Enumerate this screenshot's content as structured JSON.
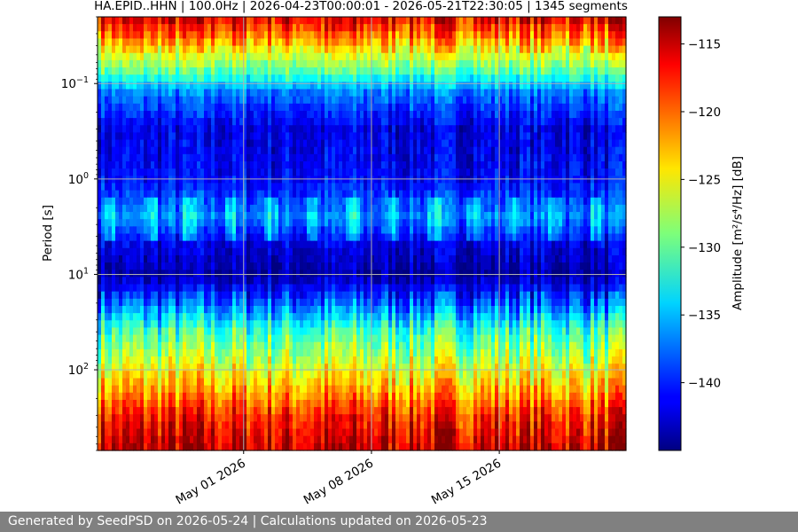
{
  "chart_data": {
    "type": "heatmap",
    "title": "HA.EPID..HHN | 100.0Hz | 2026-04-23T00:00:01 - 2026-05-21T22:30:05 | 1345 segments",
    "xlabel": "",
    "ylabel": "Period [s]",
    "x_type": "date",
    "xlim": [
      "2026-04-23T00:00:01",
      "2026-05-21T22:30:05"
    ],
    "x_ticks": [
      "2026-05-01",
      "2026-05-08",
      "2026-05-15"
    ],
    "x_tick_labels": [
      "May 01 2026",
      "May 08 2026",
      "May 15 2026"
    ],
    "y_scale": "log",
    "y_inverted": true,
    "ylim": [
      0.02,
      700
    ],
    "y_ticks": [
      0.1,
      1,
      10,
      100
    ],
    "y_tick_labels": [
      {
        "base": "10",
        "exp": "−1"
      },
      {
        "base": "10",
        "exp": "0"
      },
      {
        "base": "10",
        "exp": "1"
      },
      {
        "base": "10",
        "exp": "2"
      }
    ],
    "grid": true,
    "colormap": "jet",
    "colorbar": {
      "label": "Amplitude [m²/s⁴/Hz] [dB]",
      "range": [
        -145,
        -113
      ],
      "ticks": [
        -115,
        -120,
        -125,
        -130,
        -135,
        -140
      ],
      "tick_labels": [
        "−115",
        "−120",
        "−125",
        "−130",
        "−135",
        "−140"
      ]
    },
    "period_profile": [
      {
        "period": 0.02,
        "db": -116
      },
      {
        "period": 0.03,
        "db": -120
      },
      {
        "period": 0.05,
        "db": -126
      },
      {
        "period": 0.08,
        "db": -131
      },
      {
        "period": 0.12,
        "db": -137
      },
      {
        "period": 0.3,
        "db": -142
      },
      {
        "period": 1.0,
        "db": -141
      },
      {
        "period": 2.5,
        "db": -137
      },
      {
        "period": 5,
        "db": -142
      },
      {
        "period": 10,
        "db": -144
      },
      {
        "period": 20,
        "db": -138
      },
      {
        "period": 40,
        "db": -131
      },
      {
        "period": 80,
        "db": -127
      },
      {
        "period": 150,
        "db": -123
      },
      {
        "period": 300,
        "db": -118
      },
      {
        "period": 700,
        "db": -115
      }
    ]
  },
  "footer": {
    "text": "Generated by SeedPSD on 2026-05-24 | Calculations updated on 2026-05-23"
  }
}
